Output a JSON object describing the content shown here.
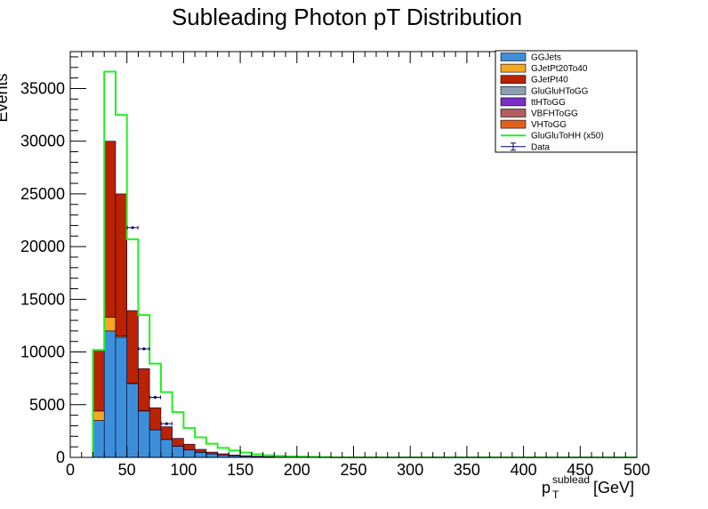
{
  "chart_data": {
    "type": "bar",
    "title": "Subleading Photon pT Distribution",
    "xlabel": "[GeV]",
    "xlabel_symbol": "p",
    "xlabel_sub": "T",
    "xlabel_sup": "sublead",
    "ylabel": "Events",
    "xlim": [
      0,
      500
    ],
    "ylim": [
      0,
      38500
    ],
    "bin_width": 10,
    "x_ticks": [
      0,
      50,
      100,
      150,
      200,
      250,
      300,
      350,
      400,
      450,
      500
    ],
    "y_ticks": [
      0,
      5000,
      10000,
      15000,
      20000,
      25000,
      30000,
      35000
    ],
    "bin_edges": [
      20,
      30,
      40,
      50,
      60,
      70,
      80,
      90,
      100,
      110,
      120,
      130,
      140,
      150,
      160,
      170,
      180,
      190,
      200,
      210,
      220,
      230
    ],
    "stack": [
      {
        "name": "GGJets",
        "color": "#3d8fd9",
        "values": [
          3500,
          12000,
          11400,
          7000,
          4400,
          2600,
          1700,
          1050,
          700,
          480,
          330,
          230,
          160,
          110,
          80,
          55,
          40,
          30,
          20,
          15,
          10
        ]
      },
      {
        "name": "GJetPt20To40",
        "color": "#f5a623",
        "values": [
          900,
          1300,
          100,
          30,
          20,
          10,
          8,
          5,
          3,
          2,
          2,
          1,
          1,
          1,
          0,
          0,
          0,
          0,
          0,
          0,
          0
        ]
      },
      {
        "name": "GJetPt40",
        "color": "#bb2200",
        "values": [
          5800,
          16700,
          13500,
          6900,
          4000,
          2100,
          1200,
          750,
          550,
          280,
          170,
          110,
          70,
          45,
          30,
          20,
          15,
          10,
          8,
          5,
          3
        ]
      },
      {
        "name": "GluGluHToGG",
        "color": "#8da0b3",
        "values": []
      },
      {
        "name": "ttHToGG",
        "color": "#7b2fc8",
        "values": []
      },
      {
        "name": "VBFHToGG",
        "color": "#b06060",
        "values": []
      },
      {
        "name": "VHToGG",
        "color": "#e0601a",
        "values": []
      }
    ],
    "signal": {
      "name": "GluGluToHH (x50)",
      "color": "#22ee22",
      "values": [
        10200,
        36600,
        32500,
        20700,
        13500,
        8900,
        6200,
        4300,
        2800,
        1900,
        1300,
        900,
        650,
        450,
        300,
        200,
        140,
        100,
        70,
        50,
        30
      ]
    },
    "data_points": {
      "name": "Data",
      "x": [
        55,
        65,
        75,
        85
      ],
      "y": [
        21800,
        10300,
        5700,
        3200
      ],
      "color": "#000066"
    }
  }
}
